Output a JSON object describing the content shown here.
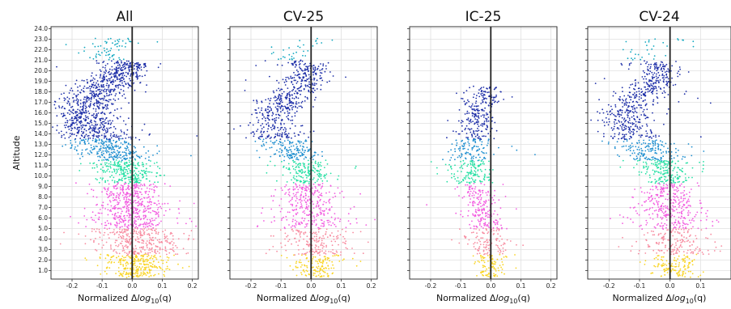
{
  "chart_data": [
    {
      "type": "scatter",
      "title": "All",
      "xlabel_prefix": "Normalized Δ",
      "xlabel_main": "log",
      "xlabel_sub": "10",
      "xlabel_suffix": "(q)",
      "ylabel": "Altitude",
      "xlim": [
        -0.27,
        0.22
      ],
      "ylim": [
        0.2,
        24.2
      ],
      "xticks": [
        -0.2,
        -0.1,
        0.0,
        0.1,
        0.2
      ],
      "xtick_labels": [
        "-0.2",
        "-0.1",
        "0.0",
        "0.1",
        "0.2"
      ],
      "yticks": [
        1.0,
        2.0,
        3.0,
        4.0,
        5.0,
        6.0,
        7.0,
        8.0,
        9.0,
        10.0,
        11.0,
        12.0,
        13.0,
        14.0,
        15.0,
        16.0,
        17.0,
        18.0,
        19.0,
        20.0,
        21.0,
        22.0,
        23.0,
        24.0
      ],
      "ytick_labels": [
        "1.0",
        "2.0",
        "3.0",
        "4.0",
        "5.0",
        "6.0",
        "7.0",
        "8.0",
        "9.0",
        "10.0",
        "11.0",
        "12.0",
        "13.0",
        "14.0",
        "15.0",
        "16.0",
        "17.0",
        "18.0",
        "19.0",
        "20.0",
        "21.0",
        "22.0",
        "23.0",
        "24.0"
      ],
      "grid": true,
      "vertical_line_x": 0.0,
      "color_by_altitude": [
        "#f9d423",
        "#f78ca0",
        "#f25ce0",
        "#26e0a4",
        "#1f8fd0",
        "#1e2fa8",
        "#11a8c0"
      ],
      "profile": [
        {
          "alt": 1.0,
          "center": 0.02,
          "spread": 0.04
        },
        {
          "alt": 2.0,
          "center": 0.02,
          "spread": 0.06
        },
        {
          "alt": 3.0,
          "center": 0.02,
          "spread": 0.07
        },
        {
          "alt": 4.0,
          "center": 0.02,
          "spread": 0.07
        },
        {
          "alt": 5.0,
          "center": 0.01,
          "spread": 0.07
        },
        {
          "alt": 6.0,
          "center": 0.0,
          "spread": 0.07
        },
        {
          "alt": 7.0,
          "center": -0.01,
          "spread": 0.06
        },
        {
          "alt": 8.0,
          "center": -0.02,
          "spread": 0.06
        },
        {
          "alt": 9.0,
          "center": -0.01,
          "spread": 0.05
        },
        {
          "alt": 10.0,
          "center": -0.01,
          "spread": 0.04
        },
        {
          "alt": 11.0,
          "center": -0.03,
          "spread": 0.05
        },
        {
          "alt": 12.0,
          "center": -0.06,
          "spread": 0.05
        },
        {
          "alt": 13.0,
          "center": -0.09,
          "spread": 0.06
        },
        {
          "alt": 14.0,
          "center": -0.12,
          "spread": 0.06
        },
        {
          "alt": 15.0,
          "center": -0.15,
          "spread": 0.05
        },
        {
          "alt": 16.0,
          "center": -0.16,
          "spread": 0.05
        },
        {
          "alt": 17.0,
          "center": -0.15,
          "spread": 0.05
        },
        {
          "alt": 18.0,
          "center": -0.11,
          "spread": 0.05
        },
        {
          "alt": 19.0,
          "center": -0.07,
          "spread": 0.05
        },
        {
          "alt": 20.0,
          "center": -0.03,
          "spread": 0.04
        },
        {
          "alt": 20.6,
          "center": 0.0,
          "spread": 0.03
        },
        {
          "alt": 21.6,
          "center": -0.12,
          "spread": 0.04
        },
        {
          "alt": 22.6,
          "center": -0.06,
          "spread": 0.05
        }
      ],
      "n_points": 2600
    },
    {
      "type": "scatter",
      "title": "CV-25",
      "xlabel_prefix": "Normalized Δ",
      "xlabel_main": "log",
      "xlabel_sub": "10",
      "xlabel_suffix": "(q)",
      "xlim": [
        -0.27,
        0.22
      ],
      "ylim": [
        0.2,
        24.2
      ],
      "xticks": [
        -0.2,
        -0.1,
        0.0,
        0.1,
        0.2
      ],
      "xtick_labels": [
        "-0.2",
        "-0.1",
        "0.0",
        "0.1",
        "0.2"
      ],
      "grid": true,
      "vertical_line_x": 0.0,
      "profile": [
        {
          "alt": 1.0,
          "center": 0.02,
          "spread": 0.035
        },
        {
          "alt": 2.0,
          "center": 0.02,
          "spread": 0.05
        },
        {
          "alt": 3.0,
          "center": 0.02,
          "spread": 0.06
        },
        {
          "alt": 4.0,
          "center": 0.02,
          "spread": 0.06
        },
        {
          "alt": 5.0,
          "center": 0.01,
          "spread": 0.06
        },
        {
          "alt": 6.0,
          "center": 0.0,
          "spread": 0.06
        },
        {
          "alt": 7.0,
          "center": -0.01,
          "spread": 0.05
        },
        {
          "alt": 8.0,
          "center": -0.01,
          "spread": 0.05
        },
        {
          "alt": 9.0,
          "center": -0.01,
          "spread": 0.04
        },
        {
          "alt": 10.0,
          "center": 0.0,
          "spread": 0.035
        },
        {
          "alt": 11.0,
          "center": -0.02,
          "spread": 0.04
        },
        {
          "alt": 12.0,
          "center": -0.05,
          "spread": 0.045
        },
        {
          "alt": 13.0,
          "center": -0.08,
          "spread": 0.05
        },
        {
          "alt": 14.0,
          "center": -0.11,
          "spread": 0.05
        },
        {
          "alt": 15.0,
          "center": -0.13,
          "spread": 0.04
        },
        {
          "alt": 16.0,
          "center": -0.12,
          "spread": 0.04
        },
        {
          "alt": 17.0,
          "center": -0.09,
          "spread": 0.04
        },
        {
          "alt": 18.0,
          "center": -0.06,
          "spread": 0.04
        },
        {
          "alt": 19.0,
          "center": -0.03,
          "spread": 0.04
        },
        {
          "alt": 20.0,
          "center": 0.0,
          "spread": 0.03
        },
        {
          "alt": 21.6,
          "center": -0.09,
          "spread": 0.04
        },
        {
          "alt": 22.6,
          "center": 0.0,
          "spread": 0.04
        }
      ],
      "n_points": 1500
    },
    {
      "type": "scatter",
      "title": "IC-25",
      "xlabel_prefix": "Normalized Δ",
      "xlabel_main": "log",
      "xlabel_sub": "10",
      "xlabel_suffix": "(q)",
      "xlim": [
        -0.27,
        0.22
      ],
      "ylim": [
        0.2,
        24.2
      ],
      "xticks": [
        -0.2,
        -0.1,
        0.0,
        0.1,
        0.2
      ],
      "xtick_labels": [
        "-0.2",
        "-0.1",
        "0.0",
        "0.1",
        "0.2"
      ],
      "grid": true,
      "vertical_line_x": 0.0,
      "profile": [
        {
          "alt": 1.0,
          "center": 0.0,
          "spread": 0.02
        },
        {
          "alt": 2.0,
          "center": 0.0,
          "spread": 0.03
        },
        {
          "alt": 3.0,
          "center": -0.01,
          "spread": 0.035
        },
        {
          "alt": 4.0,
          "center": -0.01,
          "spread": 0.035
        },
        {
          "alt": 5.0,
          "center": -0.01,
          "spread": 0.03
        },
        {
          "alt": 6.0,
          "center": -0.02,
          "spread": 0.03
        },
        {
          "alt": 7.0,
          "center": -0.03,
          "spread": 0.03
        },
        {
          "alt": 8.0,
          "center": -0.04,
          "spread": 0.035
        },
        {
          "alt": 9.0,
          "center": -0.05,
          "spread": 0.035
        },
        {
          "alt": 10.0,
          "center": -0.06,
          "spread": 0.035
        },
        {
          "alt": 11.0,
          "center": -0.07,
          "spread": 0.035
        },
        {
          "alt": 12.0,
          "center": -0.07,
          "spread": 0.035
        },
        {
          "alt": 13.0,
          "center": -0.06,
          "spread": 0.035
        },
        {
          "alt": 14.0,
          "center": -0.05,
          "spread": 0.03
        },
        {
          "alt": 15.0,
          "center": -0.04,
          "spread": 0.03
        },
        {
          "alt": 16.0,
          "center": -0.04,
          "spread": 0.03
        },
        {
          "alt": 17.0,
          "center": -0.03,
          "spread": 0.03
        },
        {
          "alt": 18.0,
          "center": -0.02,
          "spread": 0.03
        }
      ],
      "n_points": 900
    },
    {
      "type": "scatter",
      "title": "CV-24",
      "xlabel_prefix": "Normalized Δ",
      "xlabel_main": "log",
      "xlabel_sub": "10",
      "xlabel_suffix": "(q)",
      "xlim": [
        -0.27,
        0.2
      ],
      "ylim": [
        0.2,
        24.2
      ],
      "xticks": [
        -0.2,
        -0.1,
        0.0,
        0.1
      ],
      "xtick_labels": [
        "-0.2",
        "-0.1",
        "0.0",
        "0.1"
      ],
      "grid": true,
      "vertical_line_x": 0.0,
      "profile": [
        {
          "alt": 1.0,
          "center": 0.02,
          "spread": 0.035
        },
        {
          "alt": 2.0,
          "center": 0.02,
          "spread": 0.05
        },
        {
          "alt": 3.0,
          "center": 0.02,
          "spread": 0.06
        },
        {
          "alt": 4.0,
          "center": 0.02,
          "spread": 0.06
        },
        {
          "alt": 5.0,
          "center": 0.01,
          "spread": 0.06
        },
        {
          "alt": 6.0,
          "center": 0.0,
          "spread": 0.06
        },
        {
          "alt": 7.0,
          "center": -0.01,
          "spread": 0.05
        },
        {
          "alt": 8.0,
          "center": -0.01,
          "spread": 0.05
        },
        {
          "alt": 9.0,
          "center": -0.01,
          "spread": 0.04
        },
        {
          "alt": 10.0,
          "center": 0.0,
          "spread": 0.035
        },
        {
          "alt": 11.0,
          "center": -0.03,
          "spread": 0.04
        },
        {
          "alt": 12.0,
          "center": -0.06,
          "spread": 0.045
        },
        {
          "alt": 13.0,
          "center": -0.09,
          "spread": 0.05
        },
        {
          "alt": 14.0,
          "center": -0.12,
          "spread": 0.05
        },
        {
          "alt": 15.0,
          "center": -0.15,
          "spread": 0.045
        },
        {
          "alt": 16.0,
          "center": -0.15,
          "spread": 0.045
        },
        {
          "alt": 17.0,
          "center": -0.12,
          "spread": 0.04
        },
        {
          "alt": 18.0,
          "center": -0.08,
          "spread": 0.045
        },
        {
          "alt": 19.0,
          "center": -0.05,
          "spread": 0.04
        },
        {
          "alt": 20.0,
          "center": -0.02,
          "spread": 0.035
        },
        {
          "alt": 21.6,
          "center": -0.1,
          "spread": 0.04
        },
        {
          "alt": 22.6,
          "center": -0.03,
          "spread": 0.05
        }
      ],
      "n_points": 1500
    }
  ]
}
